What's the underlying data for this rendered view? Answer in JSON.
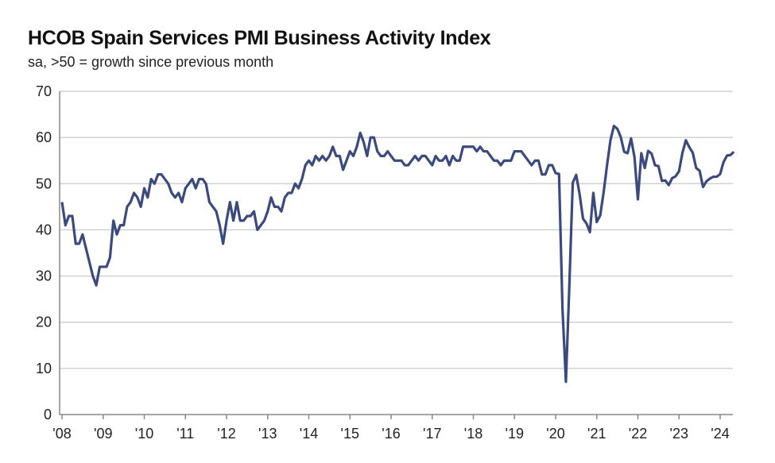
{
  "chart_data": {
    "type": "line",
    "title": "HCOB Spain Services PMI Business Activity Index",
    "subtitle": "sa, >50 = growth since previous month",
    "xlabel": "",
    "ylabel": "",
    "ylim": [
      0,
      70
    ],
    "yticks": [
      "0",
      "10",
      "20",
      "30",
      "40",
      "50",
      "60",
      "70"
    ],
    "xticks": [
      "'08",
      "'09",
      "'10",
      "'11",
      "'12",
      "'13",
      "'14",
      "'15",
      "'16",
      "'17",
      "'18",
      "'19",
      "'20",
      "'21",
      "'22",
      "'23",
      "'24"
    ],
    "x_start": "2008-01",
    "x_end": "2024-05",
    "frequency": "monthly",
    "grid": "horizontal",
    "line_color": "#3b4a7e",
    "values": [
      46,
      41,
      43,
      43,
      37,
      37,
      39,
      36,
      33,
      30,
      28,
      32,
      32,
      32,
      34,
      42,
      39,
      41,
      41,
      45,
      46,
      48,
      47,
      45,
      49,
      47,
      51,
      50,
      52,
      52,
      51,
      50,
      48,
      47,
      48,
      46,
      49,
      50,
      51,
      49,
      51,
      51,
      50,
      46,
      45,
      44,
      41,
      37,
      42,
      46,
      42,
      46,
      42,
      42,
      43,
      43,
      44,
      40,
      41,
      42,
      44,
      47,
      45,
      45,
      44,
      47,
      48,
      48,
      50,
      49,
      51,
      54,
      55,
      54,
      56,
      55,
      56,
      55,
      56,
      58,
      56,
      56,
      53,
      55,
      57,
      56,
      58,
      61,
      59,
      56,
      60,
      60,
      57,
      56,
      56,
      57,
      56,
      55,
      55,
      55,
      54,
      54,
      55,
      56,
      55,
      56,
      56,
      55,
      54,
      56,
      55,
      55,
      56,
      54,
      56,
      55,
      55,
      58,
      58,
      58,
      58,
      57,
      58,
      57,
      57,
      56,
      55,
      55,
      54,
      55,
      55,
      55,
      57,
      57,
      57,
      56,
      55,
      54,
      55,
      55,
      52,
      52,
      54,
      54,
      52.3,
      52.1,
      23,
      7.1,
      27.9,
      50.2,
      51.9,
      47.7,
      42.4,
      41.4,
      39.5,
      48.0,
      41.7,
      43.1,
      48.1,
      54.0,
      59.4,
      62.5,
      61.9,
      60.1,
      56.9,
      56.6,
      59.8,
      55.8,
      46.6,
      56.6,
      53.4,
      57.1,
      56.5,
      54.0,
      53.8,
      50.6,
      50.7,
      49.7,
      51.2,
      51.6,
      52.7,
      56.7,
      59.4,
      57.9,
      56.7,
      53.4,
      52.8,
      49.3,
      50.5,
      51.1,
      51.5,
      51.5,
      52.1,
      54.7,
      56.1,
      56.2,
      56.9
    ]
  }
}
